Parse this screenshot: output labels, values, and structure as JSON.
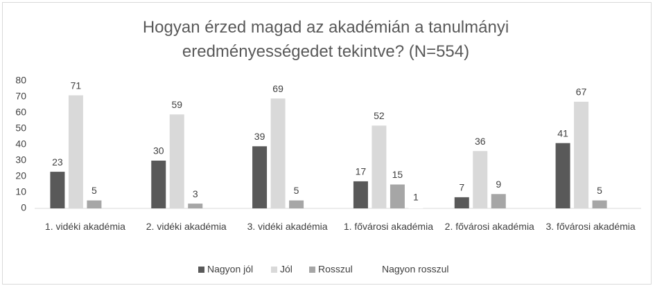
{
  "chart_data": {
    "type": "bar",
    "title": "Hogyan érzed magad az akadémián a tanulmányi eredményességedet tekintve? (N=554)",
    "categories": [
      "1. vidéki akadémia",
      "2. vidéki akadémia",
      "3. vidéki akadémia",
      "1. fővárosi akadémia",
      "2. fővárosi akadémia",
      "3. fővárosi akadémia"
    ],
    "series": [
      {
        "name": "Nagyon jól",
        "color": "#595959",
        "values": [
          23,
          30,
          39,
          17,
          7,
          41
        ]
      },
      {
        "name": "Jól",
        "color": "#d9d9d9",
        "values": [
          71,
          59,
          69,
          52,
          36,
          67
        ]
      },
      {
        "name": "Rosszul",
        "color": "#a6a6a6",
        "values": [
          5,
          3,
          5,
          15,
          9,
          5
        ]
      },
      {
        "name": "Nagyon rosszul",
        "color": "#ffffff",
        "values": [
          null,
          null,
          null,
          1,
          null,
          null
        ]
      }
    ],
    "ylim": [
      0,
      80
    ],
    "yticks": [
      0,
      10,
      20,
      30,
      40,
      50,
      60,
      70,
      80
    ],
    "grid": false,
    "legend": "bottom"
  }
}
